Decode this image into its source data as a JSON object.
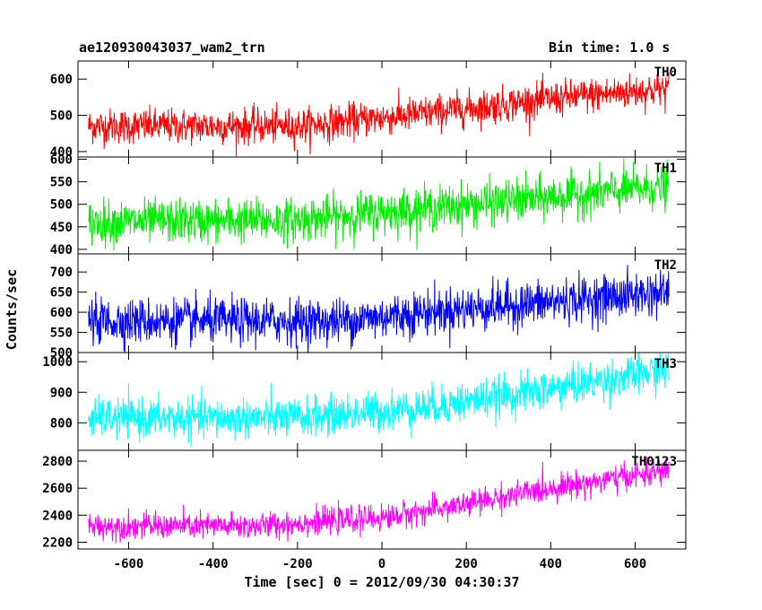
{
  "header": {
    "title": "ae120930043037_wam2_trn",
    "bin_time": "Bin time: 1.0 s"
  },
  "chart_data": {
    "type": "line",
    "title": "ae120930043037_wam2_trn",
    "subtitle": "Bin time: 1.0 s",
    "xlabel": "Time [sec] 0 = 2012/09/30 04:30:37",
    "ylabel": "Counts/sec",
    "xlim": [
      -720,
      720
    ],
    "xticks": [
      -600,
      -400,
      -200,
      0,
      200,
      400,
      600
    ],
    "grid": false,
    "panels": [
      {
        "name": "TH0",
        "color": "#ff0000",
        "ylim": [
          385,
          650
        ],
        "yticks": [
          400,
          500,
          600
        ],
        "x_range": [
          -695,
          680
        ],
        "trend": [
          [
            -695,
            470
          ],
          [
            -200,
            470
          ],
          [
            100,
            505
          ],
          [
            400,
            545
          ],
          [
            680,
            575
          ]
        ],
        "noise_sd": 24
      },
      {
        "name": "TH1",
        "color": "#00ee00",
        "ylim": [
          390,
          605
        ],
        "yticks": [
          400,
          450,
          500,
          550,
          600
        ],
        "x_range": [
          -695,
          680
        ],
        "trend": [
          [
            -695,
            460
          ],
          [
            -200,
            465
          ],
          [
            100,
            490
          ],
          [
            400,
            515
          ],
          [
            680,
            540
          ]
        ],
        "noise_sd": 24
      },
      {
        "name": "TH2",
        "color": "#0000ff",
        "ylim": [
          500,
          745
        ],
        "yticks": [
          500,
          550,
          600,
          650,
          700
        ],
        "x_range": [
          -695,
          680
        ],
        "trend": [
          [
            -695,
            578
          ],
          [
            -100,
            578
          ],
          [
            100,
            600
          ],
          [
            400,
            625
          ],
          [
            680,
            650
          ]
        ],
        "noise_sd": 28
      },
      {
        "name": "TH3",
        "color": "#00ffff",
        "ylim": [
          710,
          1030
        ],
        "yticks": [
          800,
          900,
          1000
        ],
        "x_range": [
          -695,
          680
        ],
        "trend": [
          [
            -695,
            815
          ],
          [
            -200,
            815
          ],
          [
            100,
            850
          ],
          [
            400,
            910
          ],
          [
            680,
            975
          ]
        ],
        "noise_sd": 32
      },
      {
        "name": "TH0123",
        "color": "#ff00ff",
        "ylim": [
          2150,
          2880
        ],
        "yticks": [
          2200,
          2400,
          2600,
          2800
        ],
        "x_range": [
          -695,
          680
        ],
        "trend": [
          [
            -695,
            2320
          ],
          [
            -300,
            2320
          ],
          [
            0,
            2380
          ],
          [
            200,
            2480
          ],
          [
            400,
            2600
          ],
          [
            680,
            2730
          ]
        ],
        "noise_sd": 48
      }
    ]
  }
}
